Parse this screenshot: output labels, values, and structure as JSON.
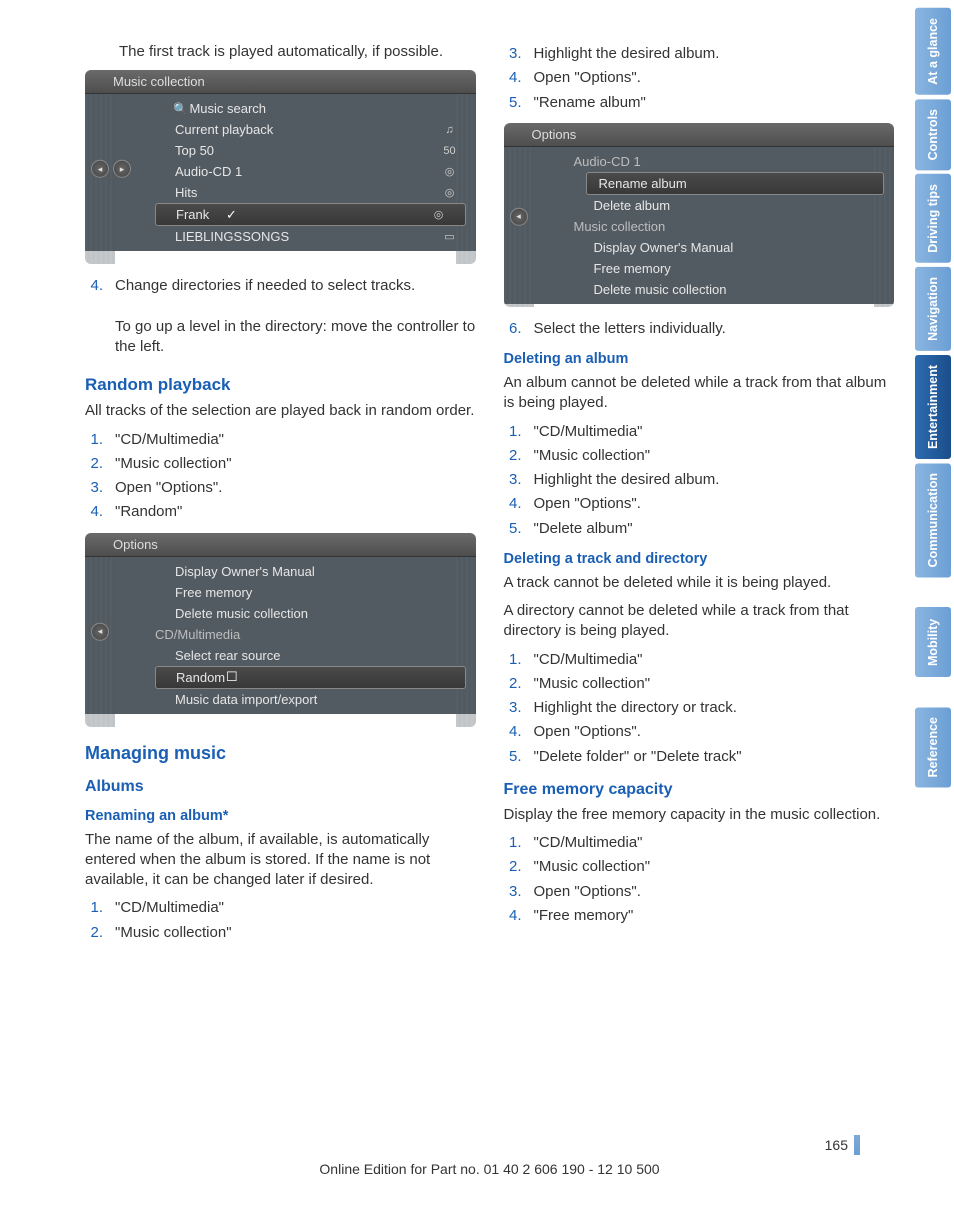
{
  "sidebar_tabs": [
    {
      "label": "At a glance",
      "active": false
    },
    {
      "label": "Controls",
      "active": false
    },
    {
      "label": "Driving tips",
      "active": false
    },
    {
      "label": "Navigation",
      "active": false
    },
    {
      "label": "Entertainment",
      "active": true
    },
    {
      "label": "Communication",
      "active": false
    },
    {
      "label": "Mobility",
      "active": false
    },
    {
      "label": "Reference",
      "active": false
    }
  ],
  "left": {
    "intro": "The first track is played automatically, if possible.",
    "screen1": {
      "title": "Music collection",
      "rows": [
        {
          "icon": "🔍",
          "label": "Music search",
          "right": ""
        },
        {
          "label": "Current playback",
          "right": "♫"
        },
        {
          "label": "Top 50",
          "right": "50"
        },
        {
          "label": "Audio-CD 1",
          "right": "◎"
        },
        {
          "label": "Hits",
          "right": "◎"
        },
        {
          "chk": "✓",
          "label": "Frank",
          "right": "◎",
          "sel": true
        },
        {
          "label": "LIEBLINGSSONGS",
          "right": "▭"
        }
      ]
    },
    "step4": {
      "num": "4.",
      "text": "Change directories if needed to select tracks.",
      "sub": "To go up a level in the directory: move the controller to the left."
    },
    "random": {
      "heading": "Random playback",
      "intro": "All tracks of the selection are played back in random order.",
      "steps": [
        {
          "num": "1.",
          "text": "\"CD/Multimedia\""
        },
        {
          "num": "2.",
          "text": "\"Music collection\""
        },
        {
          "num": "3.",
          "text": "Open \"Options\"."
        },
        {
          "num": "4.",
          "text": "\"Random\""
        }
      ]
    },
    "screen2": {
      "title": "Options",
      "rows": [
        {
          "label": "Display Owner's Manual"
        },
        {
          "label": "Free memory"
        },
        {
          "label": "Delete music collection"
        },
        {
          "label": "CD/Multimedia",
          "header": true
        },
        {
          "label": "Select rear source"
        },
        {
          "chk": "☐",
          "label": "Random",
          "sel": true
        },
        {
          "label": "Music data import/export"
        }
      ]
    },
    "managing": "Managing music",
    "albums": "Albums",
    "renaming": "Renaming an album*",
    "renaming_text": "The name of the album, if available, is automatically entered when the album is stored. If the name is not available, it can be changed later if desired.",
    "renaming_steps": [
      {
        "num": "1.",
        "text": "\"CD/Multimedia\""
      },
      {
        "num": "2.",
        "text": "\"Music collection\""
      }
    ]
  },
  "right": {
    "cont_steps": [
      {
        "num": "3.",
        "text": "Highlight the desired album."
      },
      {
        "num": "4.",
        "text": "Open \"Options\"."
      },
      {
        "num": "5.",
        "text": "\"Rename album\""
      }
    ],
    "screen3": {
      "title": "Options",
      "rows": [
        {
          "label": "Audio-CD 1",
          "header": true
        },
        {
          "label": "Rename album",
          "sel": true
        },
        {
          "label": "Delete album"
        },
        {
          "label": "Music collection",
          "header": true
        },
        {
          "label": "Display Owner's Manual"
        },
        {
          "label": "Free memory"
        },
        {
          "label": "Delete music collection"
        }
      ]
    },
    "step6": {
      "num": "6.",
      "text": "Select the letters individually."
    },
    "del_album_h": "Deleting an album",
    "del_album_t": "An album cannot be deleted while a track from that album is being played.",
    "del_album_steps": [
      {
        "num": "1.",
        "text": "\"CD/Multimedia\""
      },
      {
        "num": "2.",
        "text": "\"Music collection\""
      },
      {
        "num": "3.",
        "text": "Highlight the desired album."
      },
      {
        "num": "4.",
        "text": "Open \"Options\"."
      },
      {
        "num": "5.",
        "text": "\"Delete album\""
      }
    ],
    "del_track_h": "Deleting a track and directory",
    "del_track_t1": "A track cannot be deleted while it is being played.",
    "del_track_t2": "A directory cannot be deleted while a track from that directory is being played.",
    "del_track_steps": [
      {
        "num": "1.",
        "text": "\"CD/Multimedia\""
      },
      {
        "num": "2.",
        "text": "\"Music collection\""
      },
      {
        "num": "3.",
        "text": "Highlight the directory or track."
      },
      {
        "num": "4.",
        "text": "Open \"Options\"."
      },
      {
        "num": "5.",
        "text": "\"Delete folder\" or \"Delete track\""
      }
    ],
    "free_h": "Free memory capacity",
    "free_t": "Display the free memory capacity in the music collection.",
    "free_steps": [
      {
        "num": "1.",
        "text": "\"CD/Multimedia\""
      },
      {
        "num": "2.",
        "text": "\"Music collection\""
      },
      {
        "num": "3.",
        "text": "Open \"Options\"."
      },
      {
        "num": "4.",
        "text": "\"Free memory\""
      }
    ]
  },
  "page_number": "165",
  "footer_line": "Online Edition for Part no. 01 40 2 606 190 - 12 10 500",
  "colors": {
    "link": "#1a5fb4",
    "tab_bg": "#6b9fd4",
    "tab_active": "#1a4e8a",
    "screen_bg": "#535b62"
  }
}
